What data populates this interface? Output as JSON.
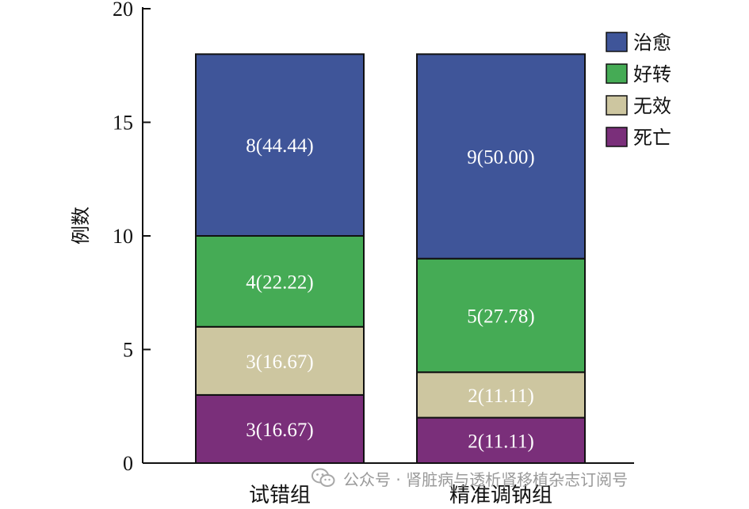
{
  "chart_data": {
    "type": "bar",
    "stacked": true,
    "categories": [
      "试错组",
      "精准调钠组"
    ],
    "series": [
      {
        "name": "死亡",
        "values": [
          3,
          2
        ],
        "labels": [
          "3(16.67)",
          "2(11.11)"
        ],
        "color": "#7a2f7a"
      },
      {
        "name": "无效",
        "values": [
          3,
          2
        ],
        "labels": [
          "3(16.67)",
          "2(11.11)"
        ],
        "color": "#cdc6a0"
      },
      {
        "name": "好转",
        "values": [
          4,
          5
        ],
        "labels": [
          "4(22.22)",
          "5(27.78)"
        ],
        "color": "#45ab55"
      },
      {
        "name": "治愈",
        "values": [
          8,
          9
        ],
        "labels": [
          "8(44.44)",
          "9(50.00)"
        ],
        "color": "#3f5599"
      }
    ],
    "legend_order": [
      "治愈",
      "好转",
      "无效",
      "死亡"
    ],
    "ylabel": "例数",
    "xlabel": "",
    "ylim": [
      0,
      20
    ],
    "yticks": [
      0,
      5,
      10,
      15,
      20
    ],
    "grid": false,
    "legend_position": "top-right"
  },
  "watermark": {
    "icon": "wechat-icon",
    "text": "公众号 · 肾脏病与透析肾移植杂志订阅号"
  }
}
